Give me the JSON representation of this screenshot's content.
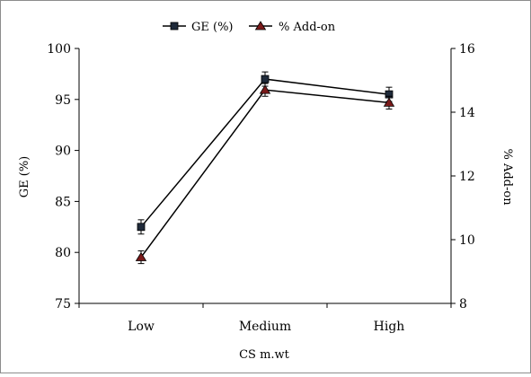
{
  "chart_data": {
    "type": "line",
    "categories": [
      "Low",
      "Medium",
      "High"
    ],
    "xlabel": "CS m.wt",
    "ylabel": "GE (%)",
    "y2label": "% Add-on",
    "ylim": [
      75,
      100
    ],
    "y2lim": [
      8,
      16
    ],
    "yticks": [
      "75",
      "80",
      "85",
      "90",
      "95",
      "100"
    ],
    "y2ticks": [
      "8",
      "10",
      "12",
      "14",
      "16"
    ],
    "grid": false,
    "legend_position": "top-center",
    "series": [
      {
        "name": "GE (%)",
        "axis": "left",
        "marker": "square",
        "values": [
          82.5,
          97.0,
          95.5
        ],
        "errors": [
          0.7,
          0.7,
          0.7
        ]
      },
      {
        "name": "% Add-on",
        "axis": "right",
        "marker": "triangle",
        "values": [
          9.45,
          14.7,
          14.3
        ],
        "errors": [
          0.2,
          0.2,
          0.2
        ]
      }
    ],
    "colors": {
      "line": "#000000",
      "square_marker": "#1f2a3a",
      "triangle_marker": "#7a1a1a"
    }
  }
}
